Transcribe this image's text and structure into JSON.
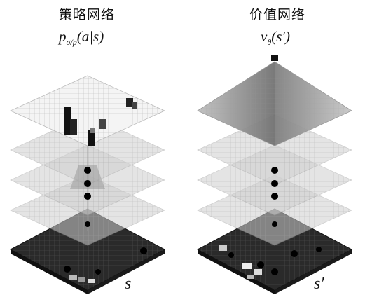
{
  "policy": {
    "title": "策略网络",
    "formula_base": "p",
    "formula_sub": "σ/p",
    "formula_arg": "(a|s)",
    "board_label": "s"
  },
  "value": {
    "title": "价值网络",
    "formula_base": "v",
    "formula_sub": "θ",
    "formula_arg": "(s′)",
    "board_label": "s′"
  },
  "colors": {
    "board": "#2a2a2a",
    "layer": "#d4d4d4",
    "top_layer": "#f2f2f2",
    "pyramid": "#7a7a7a"
  }
}
